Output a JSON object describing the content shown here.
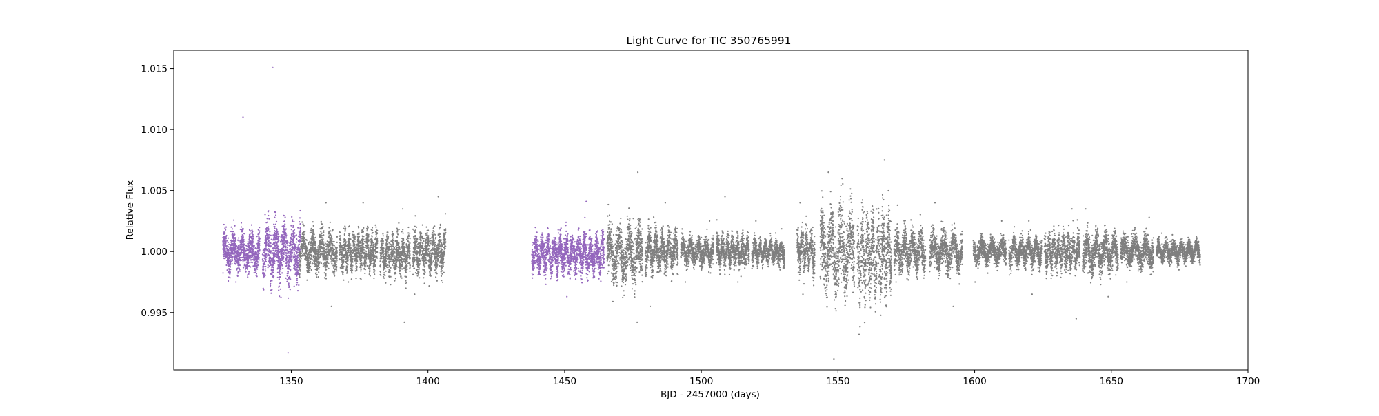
{
  "chart_data": {
    "type": "scatter",
    "title": "Light Curve for TIC 350765991",
    "xlabel": "BJD - 2457000 (days)",
    "ylabel": "Relative Flux",
    "xlim": [
      1307,
      1700
    ],
    "ylim": [
      0.9903,
      1.0165
    ],
    "xticks": [
      1350,
      1400,
      1450,
      1500,
      1550,
      1600,
      1650,
      1700
    ],
    "xtick_labels": [
      "1350",
      "1400",
      "1450",
      "1500",
      "1550",
      "1600",
      "1650",
      "1700"
    ],
    "yticks": [
      0.995,
      1.0,
      1.005,
      1.01,
      1.015
    ],
    "ytick_labels": [
      "0.995",
      "1.000",
      "1.005",
      "1.010",
      "1.015"
    ],
    "grid": false,
    "colors": {
      "highlight": "#9467bd",
      "base": "#7f7f7f"
    },
    "series": [
      {
        "color": "#9467bd",
        "segments": [
          {
            "x_start": 1325.0,
            "x_end": 1338.5,
            "center": 1.0,
            "scatter": 0.0011,
            "min": 0.9975,
            "max": 1.011
          },
          {
            "x_start": 1339.5,
            "x_end": 1353.5,
            "center": 1.0,
            "scatter": 0.0016,
            "min": 0.9917,
            "max": 1.0151
          },
          {
            "x_start": 1438.0,
            "x_end": 1464.5,
            "center": 0.9998,
            "scatter": 0.0011,
            "min": 0.9963,
            "max": 1.0041
          }
        ]
      },
      {
        "color": "#7f7f7f",
        "segments": [
          {
            "x_start": 1353.0,
            "x_end": 1366.8,
            "center": 1.0,
            "scatter": 0.0011,
            "min": 0.9955,
            "max": 1.004
          },
          {
            "x_start": 1367.5,
            "x_end": 1381.5,
            "center": 1.0,
            "scatter": 0.0011,
            "min": 0.9975,
            "max": 1.004
          },
          {
            "x_start": 1382.5,
            "x_end": 1393.5,
            "center": 0.9997,
            "scatter": 0.0011,
            "min": 0.9942,
            "max": 1.0035
          },
          {
            "x_start": 1394.5,
            "x_end": 1406.5,
            "center": 1.0,
            "scatter": 0.0012,
            "min": 0.9965,
            "max": 1.0045
          },
          {
            "x_start": 1465.5,
            "x_end": 1478.5,
            "center": 0.9998,
            "scatter": 0.0016,
            "min": 0.9942,
            "max": 1.0065
          },
          {
            "x_start": 1479.5,
            "x_end": 1491.5,
            "center": 1.0,
            "scatter": 0.0012,
            "min": 0.9955,
            "max": 1.004
          },
          {
            "x_start": 1492.5,
            "x_end": 1504.5,
            "center": 1.0,
            "scatter": 0.0008,
            "min": 0.9975,
            "max": 1.0025
          },
          {
            "x_start": 1505.5,
            "x_end": 1517.5,
            "center": 1.0,
            "scatter": 0.0009,
            "min": 0.9975,
            "max": 1.0045
          },
          {
            "x_start": 1518.5,
            "x_end": 1530.5,
            "center": 1.0,
            "scatter": 0.0007,
            "min": 0.9985,
            "max": 1.0025
          },
          {
            "x_start": 1535.0,
            "x_end": 1541.5,
            "center": 1.0,
            "scatter": 0.0012,
            "min": 0.9965,
            "max": 1.004
          },
          {
            "x_start": 1543.5,
            "x_end": 1556.0,
            "center": 1.0,
            "scatter": 0.0024,
            "min": 0.9912,
            "max": 1.0065
          },
          {
            "x_start": 1557.0,
            "x_end": 1569.5,
            "center": 0.9998,
            "scatter": 0.0024,
            "min": 0.9932,
            "max": 1.0075
          },
          {
            "x_start": 1570.5,
            "x_end": 1582.0,
            "center": 1.0,
            "scatter": 0.0012,
            "min": 0.9975,
            "max": 1.0038
          },
          {
            "x_start": 1583.5,
            "x_end": 1595.5,
            "center": 1.0,
            "scatter": 0.0011,
            "min": 0.9955,
            "max": 1.004
          },
          {
            "x_start": 1599.5,
            "x_end": 1611.5,
            "center": 1.0,
            "scatter": 0.0007,
            "min": 0.9975,
            "max": 1.0025
          },
          {
            "x_start": 1612.5,
            "x_end": 1624.5,
            "center": 1.0,
            "scatter": 0.0008,
            "min": 0.9965,
            "max": 1.0025
          },
          {
            "x_start": 1625.5,
            "x_end": 1638.5,
            "center": 1.0,
            "scatter": 0.0011,
            "min": 0.9945,
            "max": 1.0035
          },
          {
            "x_start": 1639.5,
            "x_end": 1652.5,
            "center": 0.9999,
            "scatter": 0.0011,
            "min": 0.9963,
            "max": 1.0035
          },
          {
            "x_start": 1653.5,
            "x_end": 1665.5,
            "center": 1.0,
            "scatter": 0.0009,
            "min": 0.9975,
            "max": 1.0028
          },
          {
            "x_start": 1666.5,
            "x_end": 1682.5,
            "center": 1.0,
            "scatter": 0.0006,
            "min": 0.9985,
            "max": 1.0015
          }
        ]
      }
    ]
  }
}
